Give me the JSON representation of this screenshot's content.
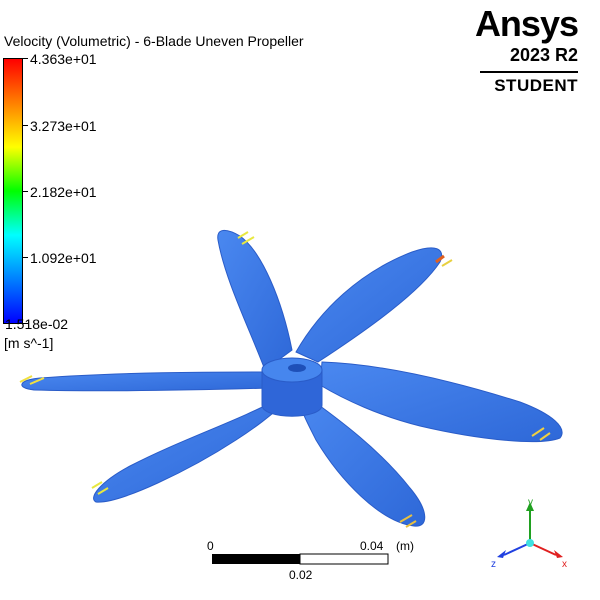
{
  "viewer": {
    "title": "Velocity (Volumetric) - 6-Blade Uneven Propeller",
    "legend": {
      "max_label": "4.363e+01",
      "tick2_label": "3.273e+01",
      "tick3_label": "2.182e+01",
      "tick4_label": "1.092e+01",
      "min_label": "1.518e-02",
      "units": "[m s^-1]",
      "colors": [
        "#ff0000",
        "#ff8000",
        "#ffff00",
        "#00ff00",
        "#00ffff",
        "#0080ff",
        "#0000ff"
      ]
    },
    "logo": {
      "brand": "Ansys",
      "version": "2023 R2",
      "edition": "STUDENT"
    },
    "scale_bar": {
      "start_label": "0",
      "end_label": "0.04",
      "unit_label": "(m)",
      "mid_label": "0.02"
    },
    "triad": {
      "x_label": "x",
      "y_label": "y",
      "z_label": "z",
      "x_color": "#e02020",
      "y_color": "#20a020",
      "z_color": "#2040e0"
    },
    "model_color": "#3878e8"
  }
}
